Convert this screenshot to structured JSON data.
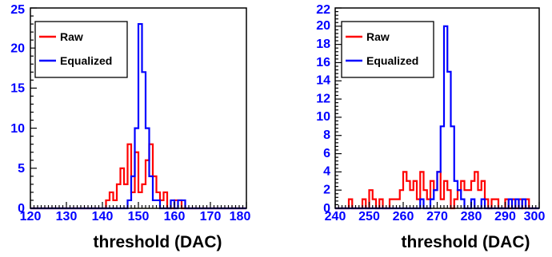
{
  "chart_data": [
    {
      "type": "histogram",
      "xlabel": "threshold (DAC)",
      "ylabel": "",
      "xlim": [
        120,
        180
      ],
      "ylim": [
        0,
        25
      ],
      "x_ticks": [
        120,
        130,
        140,
        150,
        160,
        170,
        180
      ],
      "y_ticks": [
        0,
        5,
        10,
        15,
        20,
        25
      ],
      "bin_width": 1,
      "legend": {
        "placement": "top-left",
        "entries": [
          "Raw",
          "Equalized"
        ]
      },
      "series": [
        {
          "name": "Raw",
          "color": "#ff0000",
          "bin_starts": [
            141,
            142,
            143,
            144,
            145,
            146,
            147,
            148,
            149,
            150,
            151,
            152,
            153,
            154,
            155,
            156,
            157,
            158,
            159,
            160,
            161
          ],
          "values": [
            1,
            2,
            1,
            3,
            5,
            3,
            8,
            2,
            7,
            2,
            3,
            6,
            8,
            4,
            2,
            1,
            2,
            0,
            0,
            1,
            1
          ]
        },
        {
          "name": "Equalized",
          "color": "#0000ff",
          "bin_starts": [
            147,
            148,
            149,
            150,
            151,
            152,
            153,
            154,
            155,
            156,
            157,
            158,
            159,
            160,
            161,
            162
          ],
          "values": [
            1,
            4,
            10,
            23,
            17,
            10,
            4,
            1,
            1,
            0,
            0,
            0,
            1,
            0,
            1,
            1
          ]
        }
      ]
    },
    {
      "type": "histogram",
      "xlabel": "threshold (DAC)",
      "ylabel": "",
      "xlim": [
        240,
        300
      ],
      "ylim": [
        0,
        22
      ],
      "x_ticks": [
        240,
        250,
        260,
        270,
        280,
        290,
        300
      ],
      "y_ticks": [
        0,
        2,
        4,
        6,
        8,
        10,
        12,
        14,
        16,
        18,
        20,
        22
      ],
      "bin_width": 1,
      "legend": {
        "placement": "top-left",
        "entries": [
          "Raw",
          "Equalized"
        ]
      },
      "series": [
        {
          "name": "Raw",
          "color": "#ff0000",
          "bin_starts": [
            244,
            245,
            246,
            247,
            248,
            249,
            250,
            251,
            252,
            253,
            254,
            255,
            256,
            257,
            258,
            259,
            260,
            261,
            262,
            263,
            264,
            265,
            266,
            267,
            268,
            269,
            270,
            271,
            272,
            273,
            274,
            275,
            276,
            277,
            278,
            279,
            280,
            281,
            282,
            283,
            284,
            285,
            286,
            287,
            288,
            289,
            290,
            291,
            292,
            293,
            294,
            295,
            296
          ],
          "values": [
            1,
            0,
            0,
            0,
            1,
            0,
            2,
            1,
            0,
            1,
            0,
            0,
            1,
            1,
            1,
            2,
            4,
            3,
            2,
            3,
            1,
            4,
            2,
            1,
            3,
            2,
            4,
            1,
            3,
            2,
            0,
            1,
            2,
            3,
            2,
            2,
            3,
            4,
            2,
            3,
            1,
            0,
            1,
            1,
            0,
            0,
            1,
            0,
            1,
            0,
            1,
            0,
            1
          ]
        },
        {
          "name": "Equalized",
          "color": "#0000ff",
          "bin_starts": [
            265,
            266,
            267,
            268,
            269,
            270,
            271,
            272,
            273,
            274,
            275,
            276,
            277,
            278,
            279,
            280,
            281,
            282,
            283,
            284,
            285,
            286,
            287,
            288,
            289,
            290,
            291,
            292,
            293,
            294,
            295
          ],
          "values": [
            1,
            0,
            0,
            1,
            2,
            4,
            9,
            20,
            15,
            9,
            3,
            2,
            1,
            0,
            0,
            1,
            0,
            0,
            1,
            0,
            0,
            0,
            0,
            0,
            0,
            0,
            1,
            0,
            1,
            0,
            1
          ]
        }
      ]
    }
  ]
}
